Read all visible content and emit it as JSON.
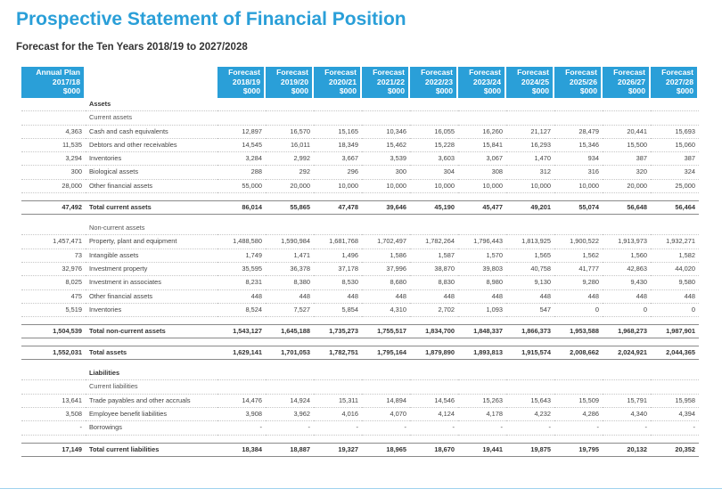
{
  "title": "Prospective Statement of Financial Position",
  "subtitle": "Forecast for the Ten Years 2018/19 to 2027/2028",
  "columns": {
    "first": [
      "Annual Plan",
      "2017/18",
      "$000"
    ],
    "forecast": [
      [
        "Forecast",
        "2018/19",
        "$000"
      ],
      [
        "Forecast",
        "2019/20",
        "$000"
      ],
      [
        "Forecast",
        "2020/21",
        "$000"
      ],
      [
        "Forecast",
        "2021/22",
        "$000"
      ],
      [
        "Forecast",
        "2022/23",
        "$000"
      ],
      [
        "Forecast",
        "2023/24",
        "$000"
      ],
      [
        "Forecast",
        "2024/25",
        "$000"
      ],
      [
        "Forecast",
        "2025/26",
        "$000"
      ],
      [
        "Forecast",
        "2026/27",
        "$000"
      ],
      [
        "Forecast",
        "2027/28",
        "$000"
      ]
    ]
  },
  "rows": [
    {
      "type": "head",
      "label": "Assets",
      "values": [
        "",
        "",
        "",
        "",
        "",
        "",
        "",
        "",
        "",
        "",
        ""
      ]
    },
    {
      "type": "sub",
      "label": "Current assets",
      "values": [
        "",
        "",
        "",
        "",
        "",
        "",
        "",
        "",
        "",
        "",
        ""
      ]
    },
    {
      "type": "item",
      "label": "Cash and cash equivalents",
      "values": [
        "4,363",
        "12,897",
        "16,570",
        "15,165",
        "10,346",
        "16,055",
        "16,260",
        "21,127",
        "28,479",
        "20,441",
        "15,693"
      ]
    },
    {
      "type": "item",
      "label": "Debtors and other receivables",
      "values": [
        "11,535",
        "14,545",
        "16,011",
        "18,349",
        "15,462",
        "15,228",
        "15,841",
        "16,293",
        "15,346",
        "15,500",
        "15,060"
      ]
    },
    {
      "type": "item",
      "label": "Inventories",
      "values": [
        "3,294",
        "3,284",
        "2,992",
        "3,667",
        "3,539",
        "3,603",
        "3,067",
        "1,470",
        "934",
        "387",
        "387"
      ]
    },
    {
      "type": "item",
      "label": "Biological assets",
      "values": [
        "300",
        "288",
        "292",
        "296",
        "300",
        "304",
        "308",
        "312",
        "316",
        "320",
        "324"
      ]
    },
    {
      "type": "item",
      "label": "Other financial assets",
      "values": [
        "28,000",
        "55,000",
        "20,000",
        "10,000",
        "10,000",
        "10,000",
        "10,000",
        "10,000",
        "10,000",
        "20,000",
        "25,000"
      ]
    },
    {
      "type": "gap",
      "label": "",
      "values": [
        "",
        "",
        "",
        "",
        "",
        "",
        "",
        "",
        "",
        "",
        ""
      ]
    },
    {
      "type": "total",
      "label": "Total current assets",
      "values": [
        "47,492",
        "86,014",
        "55,865",
        "47,478",
        "39,646",
        "45,190",
        "45,477",
        "49,201",
        "55,074",
        "56,648",
        "56,464"
      ]
    },
    {
      "type": "gap",
      "label": "",
      "values": [
        "",
        "",
        "",
        "",
        "",
        "",
        "",
        "",
        "",
        "",
        ""
      ]
    },
    {
      "type": "sub",
      "label": "Non-current assets",
      "values": [
        "",
        "",
        "",
        "",
        "",
        "",
        "",
        "",
        "",
        "",
        ""
      ]
    },
    {
      "type": "item",
      "label": "Property, plant and equipment",
      "values": [
        "1,457,471",
        "1,488,580",
        "1,590,984",
        "1,681,768",
        "1,702,497",
        "1,782,264",
        "1,796,443",
        "1,813,925",
        "1,900,522",
        "1,913,973",
        "1,932,271"
      ]
    },
    {
      "type": "item",
      "label": "Intangible assets",
      "values": [
        "73",
        "1,749",
        "1,471",
        "1,496",
        "1,586",
        "1,587",
        "1,570",
        "1,565",
        "1,562",
        "1,560",
        "1,582"
      ]
    },
    {
      "type": "item",
      "label": "Investment property",
      "values": [
        "32,976",
        "35,595",
        "36,378",
        "37,178",
        "37,996",
        "38,870",
        "39,803",
        "40,758",
        "41,777",
        "42,863",
        "44,020"
      ]
    },
    {
      "type": "item",
      "label": "Investment in associates",
      "values": [
        "8,025",
        "8,231",
        "8,380",
        "8,530",
        "8,680",
        "8,830",
        "8,980",
        "9,130",
        "9,280",
        "9,430",
        "9,580"
      ]
    },
    {
      "type": "item",
      "label": "Other financial assets",
      "values": [
        "475",
        "448",
        "448",
        "448",
        "448",
        "448",
        "448",
        "448",
        "448",
        "448",
        "448"
      ]
    },
    {
      "type": "item",
      "label": "Inventories",
      "values": [
        "5,519",
        "8,524",
        "7,527",
        "5,854",
        "4,310",
        "2,702",
        "1,093",
        "547",
        "0",
        "0",
        "0"
      ]
    },
    {
      "type": "gap",
      "label": "",
      "values": [
        "",
        "",
        "",
        "",
        "",
        "",
        "",
        "",
        "",
        "",
        ""
      ]
    },
    {
      "type": "total",
      "label": "Total non-current assets",
      "values": [
        "1,504,539",
        "1,543,127",
        "1,645,188",
        "1,735,273",
        "1,755,517",
        "1,834,700",
        "1,848,337",
        "1,866,373",
        "1,953,588",
        "1,968,273",
        "1,987,901"
      ]
    },
    {
      "type": "gap",
      "label": "",
      "values": [
        "",
        "",
        "",
        "",
        "",
        "",
        "",
        "",
        "",
        "",
        ""
      ]
    },
    {
      "type": "total",
      "label": "Total assets",
      "values": [
        "1,552,031",
        "1,629,141",
        "1,701,053",
        "1,782,751",
        "1,795,164",
        "1,879,890",
        "1,893,813",
        "1,915,574",
        "2,008,662",
        "2,024,921",
        "2,044,365"
      ]
    },
    {
      "type": "gap",
      "label": "",
      "values": [
        "",
        "",
        "",
        "",
        "",
        "",
        "",
        "",
        "",
        "",
        ""
      ]
    },
    {
      "type": "head",
      "label": "Liabilities",
      "values": [
        "",
        "",
        "",
        "",
        "",
        "",
        "",
        "",
        "",
        "",
        ""
      ]
    },
    {
      "type": "sub",
      "label": "Current liabilities",
      "values": [
        "",
        "",
        "",
        "",
        "",
        "",
        "",
        "",
        "",
        "",
        ""
      ]
    },
    {
      "type": "item",
      "label": "Trade payables and other accruals",
      "values": [
        "13,641",
        "14,476",
        "14,924",
        "15,311",
        "14,894",
        "14,546",
        "15,263",
        "15,643",
        "15,509",
        "15,791",
        "15,958"
      ]
    },
    {
      "type": "item",
      "label": "Employee benefit liabilities",
      "values": [
        "3,508",
        "3,908",
        "3,962",
        "4,016",
        "4,070",
        "4,124",
        "4,178",
        "4,232",
        "4,286",
        "4,340",
        "4,394"
      ]
    },
    {
      "type": "item",
      "label": "Borrowings",
      "values": [
        "-",
        "-",
        "-",
        "-",
        "-",
        "-",
        "-",
        "-",
        "-",
        "-",
        "-"
      ]
    },
    {
      "type": "gap",
      "label": "",
      "values": [
        "",
        "",
        "",
        "",
        "",
        "",
        "",
        "",
        "",
        "",
        ""
      ]
    },
    {
      "type": "total",
      "label": "Total current liabilities",
      "values": [
        "17,149",
        "18,384",
        "18,887",
        "19,327",
        "18,965",
        "18,670",
        "19,441",
        "19,875",
        "19,795",
        "20,132",
        "20,352"
      ]
    }
  ]
}
